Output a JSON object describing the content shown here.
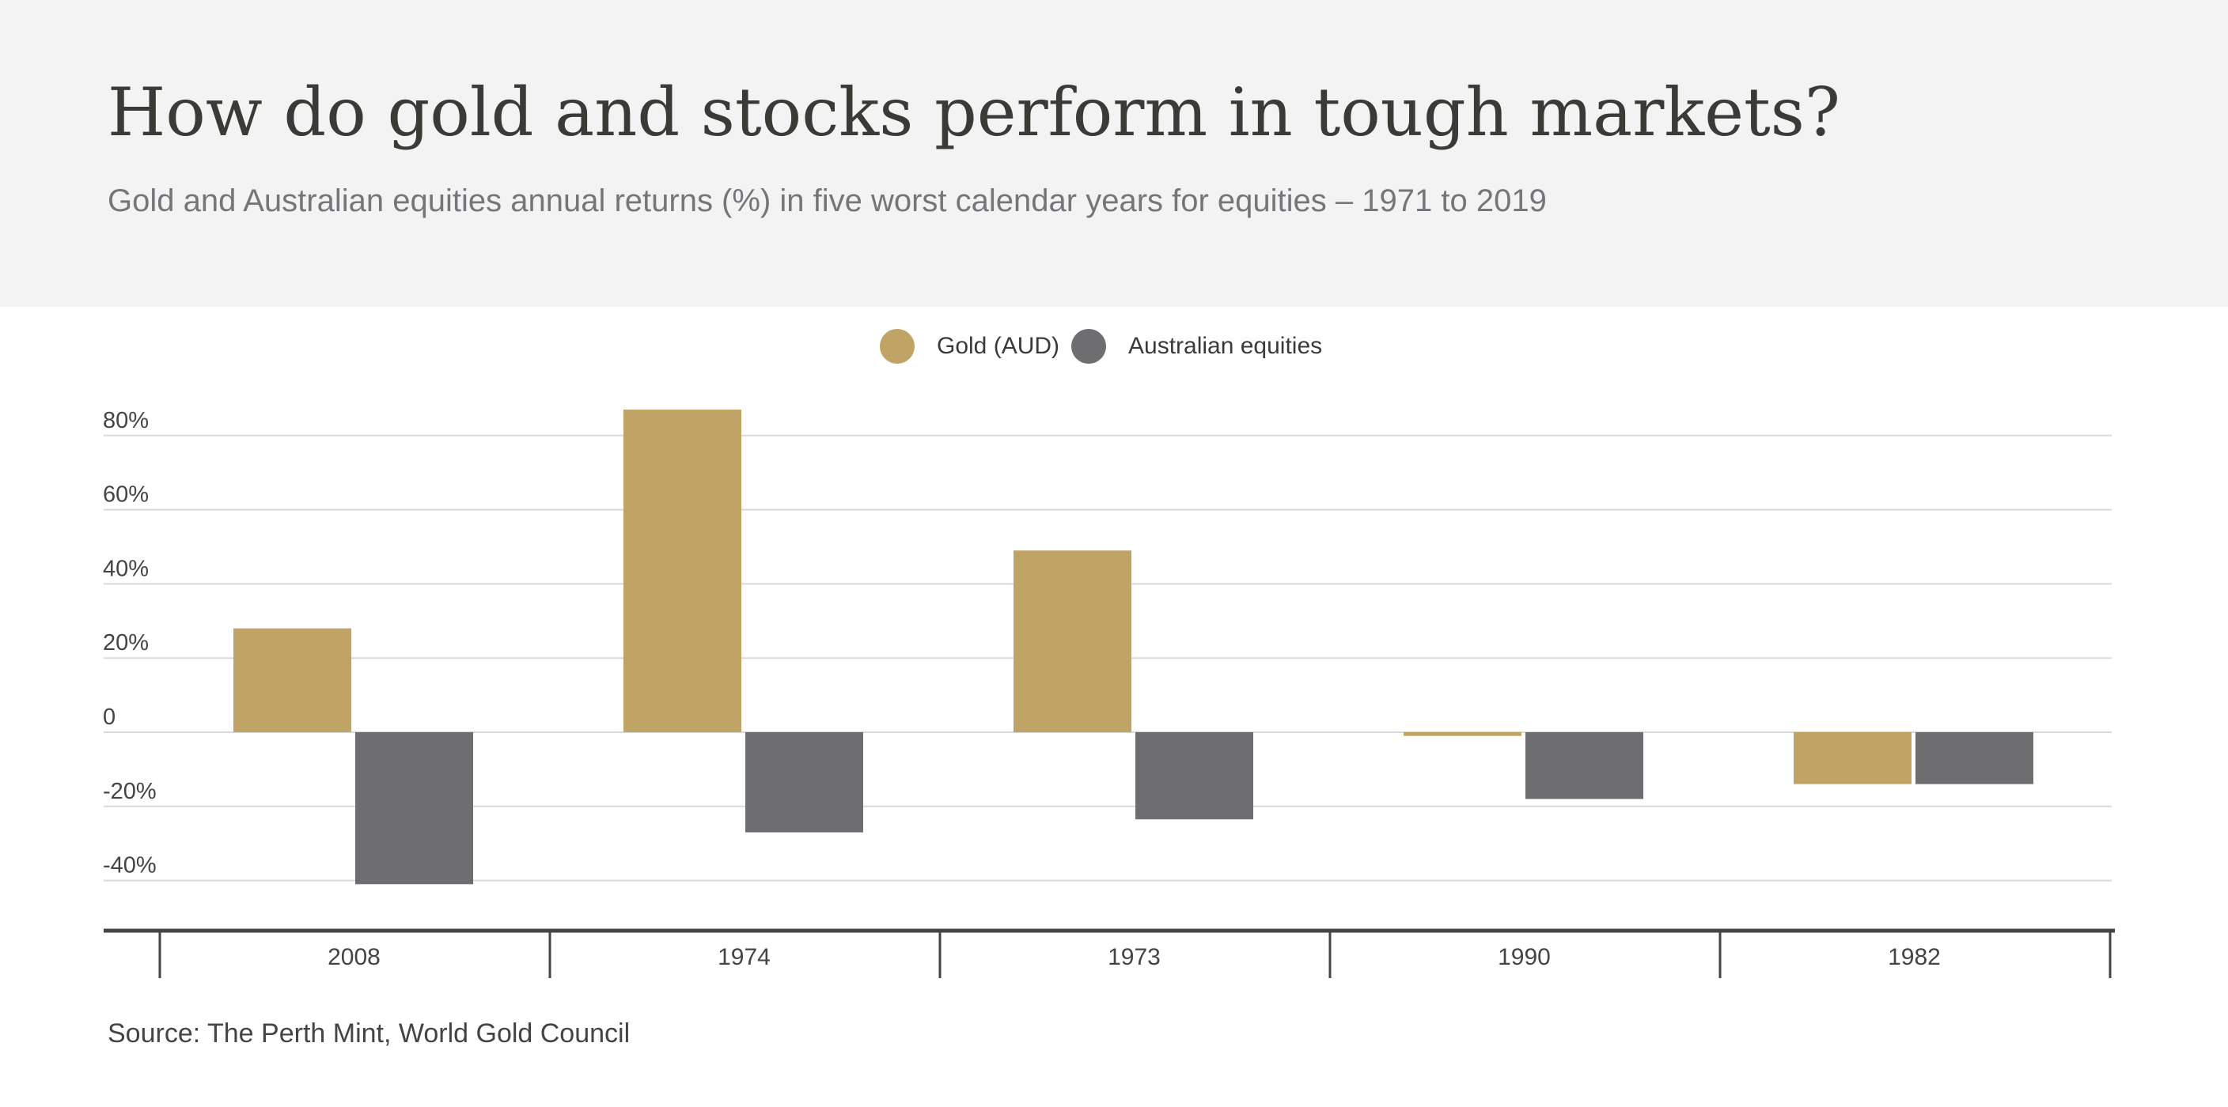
{
  "header": {
    "title": "How do gold and stocks perform in tough markets?",
    "subtitle": "Gold and Australian equities annual returns (%) in five worst calendar years for equities – 1971 to 2019"
  },
  "source": "Source: The Perth Mint, World Gold Council",
  "colors": {
    "gold": "#c0a466",
    "equities": "#6e6e70",
    "grid": "#d9d9d9",
    "axis": "#444444",
    "header_bg": "#f3f3f3"
  },
  "chart_data": {
    "type": "bar",
    "categories": [
      "2008",
      "1974",
      "1973",
      "1990",
      "1982"
    ],
    "series": [
      {
        "name": "Gold (AUD)",
        "color": "#c0a466",
        "values": [
          28,
          87,
          49,
          -1,
          -14
        ]
      },
      {
        "name": "Australian equities",
        "color": "#6e6e70",
        "values": [
          -41,
          -27,
          -23.5,
          -18,
          -14
        ]
      }
    ],
    "yticks": [
      80,
      60,
      40,
      20,
      0,
      -20,
      -40
    ],
    "ytick_labels": [
      "80%",
      "60%",
      "40%",
      "20%",
      "0",
      "-20%",
      "-40%"
    ],
    "ylim": [
      -52,
      88
    ],
    "grid": true,
    "legend_position": "top-center",
    "xlabel": "",
    "ylabel": ""
  }
}
